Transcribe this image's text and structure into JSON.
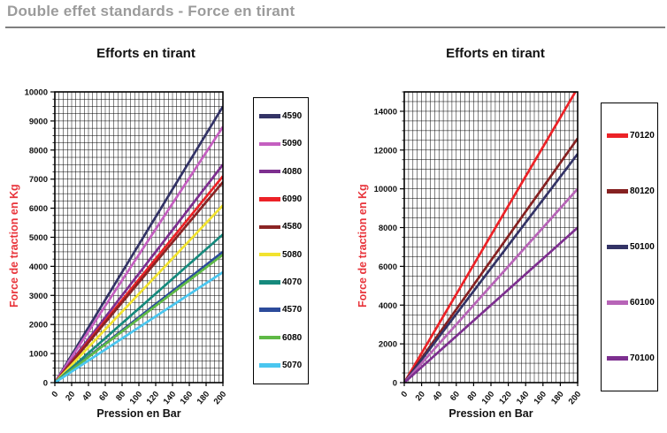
{
  "page": {
    "title": "Double effet standards - Force en tirant"
  },
  "colors": {
    "page_title": "#9b9b9b",
    "title_rule": "#7f7f7f",
    "axis_label_red": "#e8333a",
    "text": "#111111",
    "grid": "#000000"
  },
  "chart_data": [
    {
      "type": "line",
      "title": "Efforts en tirant",
      "xlabel": "Pression en Bar",
      "ylabel": "Force de traction en Kg",
      "xlim": [
        0,
        200
      ],
      "ylim": [
        0,
        10000
      ],
      "x_ticks": [
        0,
        20,
        40,
        60,
        80,
        100,
        120,
        140,
        160,
        180,
        200
      ],
      "y_ticks": [
        0,
        1000,
        2000,
        3000,
        4000,
        5000,
        6000,
        7000,
        8000,
        9000,
        10000
      ],
      "x_minor_step": 5,
      "y_minor_step": 250,
      "grid": true,
      "legend_position": "right",
      "x": [
        0,
        200
      ],
      "series": [
        {
          "name": "4590",
          "color": "#333366",
          "values": [
            0,
            9500
          ]
        },
        {
          "name": "5090",
          "color": "#c45fc0",
          "values": [
            0,
            8800
          ]
        },
        {
          "name": "4080",
          "color": "#7d2f8f",
          "values": [
            0,
            7500
          ]
        },
        {
          "name": "6090",
          "color": "#ec2227",
          "values": [
            0,
            7100
          ]
        },
        {
          "name": "4580",
          "color": "#8b2424",
          "values": [
            0,
            6900
          ]
        },
        {
          "name": "5080",
          "color": "#f2e32f",
          "values": [
            0,
            6100
          ]
        },
        {
          "name": "4070",
          "color": "#168a7d",
          "values": [
            0,
            5100
          ]
        },
        {
          "name": "4570",
          "color": "#2c4b9b",
          "values": [
            0,
            4500
          ]
        },
        {
          "name": "6080",
          "color": "#5fb946",
          "values": [
            0,
            4400
          ]
        },
        {
          "name": "5070",
          "color": "#4ac6ef",
          "values": [
            0,
            3800
          ]
        }
      ]
    },
    {
      "type": "line",
      "title": "Efforts en tirant",
      "xlabel": "Pression en Bar",
      "ylabel": "Force de traction en Kg",
      "xlim": [
        0,
        200
      ],
      "ylim": [
        0,
        15000
      ],
      "x_ticks": [
        0,
        20,
        40,
        60,
        80,
        100,
        120,
        140,
        160,
        180,
        200
      ],
      "y_ticks": [
        0,
        2000,
        4000,
        6000,
        8000,
        10000,
        12000,
        14000
      ],
      "x_minor_step": 5,
      "y_minor_step": 500,
      "grid": true,
      "legend_position": "right",
      "x": [
        0,
        200
      ],
      "series": [
        {
          "name": "70120",
          "color": "#ec2227",
          "values": [
            0,
            15200
          ]
        },
        {
          "name": "80120",
          "color": "#862121",
          "values": [
            0,
            12600
          ]
        },
        {
          "name": "50100",
          "color": "#333366",
          "values": [
            0,
            11800
          ]
        },
        {
          "name": "60100",
          "color": "#b764b7",
          "values": [
            0,
            10000
          ]
        },
        {
          "name": "70100",
          "color": "#7d2f8f",
          "values": [
            0,
            8000
          ]
        }
      ]
    }
  ]
}
